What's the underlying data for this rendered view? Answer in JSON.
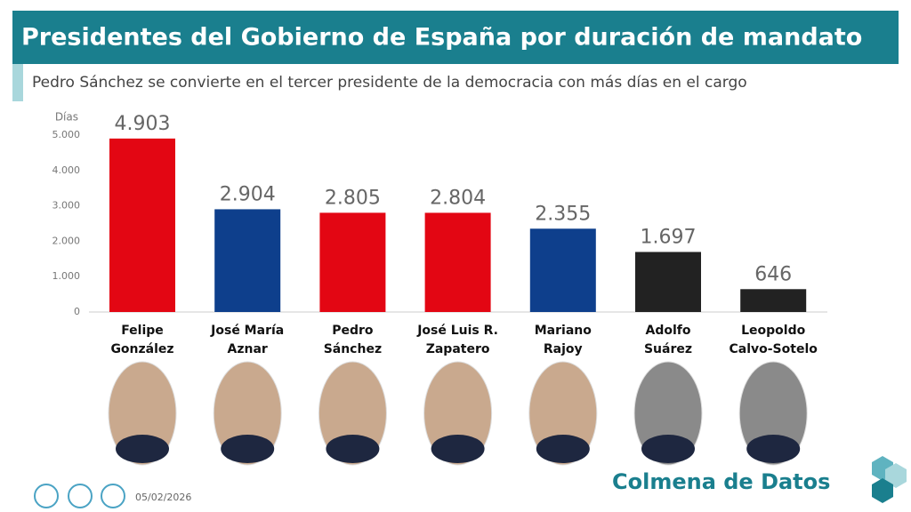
{
  "chart_data": {
    "type": "bar",
    "title": "Presidentes del Gobierno de España por duración de mandato",
    "subtitle": "Pedro Sánchez se convierte en el tercer presidente de la democracia con más días en el cargo",
    "y_label": "Días",
    "categories": [
      "Felipe González",
      "José María Aznar",
      "Pedro Sánchez",
      "José Luis R. Zapatero",
      "Mariano Rajoy",
      "Adolfo Suárez",
      "Leopoldo Calvo-Sotelo"
    ],
    "values": [
      4903,
      2904,
      2805,
      2804,
      2355,
      1697,
      646
    ],
    "value_labels": [
      "4.903",
      "2.904",
      "2.805",
      "2.804",
      "2.355",
      "1.697",
      "646"
    ],
    "colors": [
      "#e30613",
      "#0e3f8c",
      "#e30613",
      "#e30613",
      "#0e3f8c",
      "#222222",
      "#222222"
    ],
    "ylim": [
      0,
      5000
    ],
    "yticks": [
      0,
      {
        "value": 1000,
        "label": "1.000"
      },
      {
        "value": 2000,
        "label": "2.000"
      },
      {
        "value": 3000,
        "label": "3.000"
      },
      {
        "value": 4000,
        "label": "4.000"
      },
      {
        "value": 5000,
        "label": "5.000"
      }
    ],
    "grid": false
  },
  "footer": {
    "date": "05/02/2026",
    "brand": "Colmena de Datos"
  }
}
